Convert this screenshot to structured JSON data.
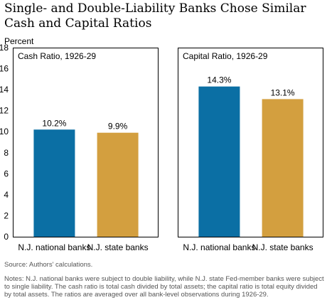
{
  "title": "Single- and Double-Liability Banks Chose Similar Cash and Capital Ratios",
  "unit_label": "Percent",
  "source": "Source: Authors' calculations.",
  "notes": "Notes: N.J. national banks were subject to double liability, while N.J. state Fed-member banks were subject to single liability. The cash ratio is total cash divided by total assets; the  capital ratio is total equity divided by total assets. The ratios are averaged over all bank-level observations during 1926-29.",
  "colors": {
    "national": "#0b6fa4",
    "state": "#d39f3f"
  },
  "chart_data": [
    {
      "type": "bar",
      "title": "Cash Ratio, 1926-29",
      "categories": [
        "N.J. national banks",
        "N.J. state banks"
      ],
      "values": [
        10.2,
        9.9
      ],
      "value_labels": [
        "10.2%",
        "9.9%"
      ],
      "ylim": [
        0,
        18
      ],
      "yticks": [
        0,
        2,
        4,
        6,
        8,
        10,
        12,
        14,
        16,
        18
      ],
      "ylabel": "Percent",
      "grid": false
    },
    {
      "type": "bar",
      "title": "Capital Ratio, 1926-29",
      "categories": [
        "N.J. national banks",
        "N.J. state banks"
      ],
      "values": [
        14.3,
        13.1
      ],
      "value_labels": [
        "14.3%",
        "13.1%"
      ],
      "ylim": [
        0,
        18
      ],
      "yticks": [
        0,
        2,
        4,
        6,
        8,
        10,
        12,
        14,
        16,
        18
      ],
      "ylabel": "Percent",
      "grid": false
    }
  ]
}
